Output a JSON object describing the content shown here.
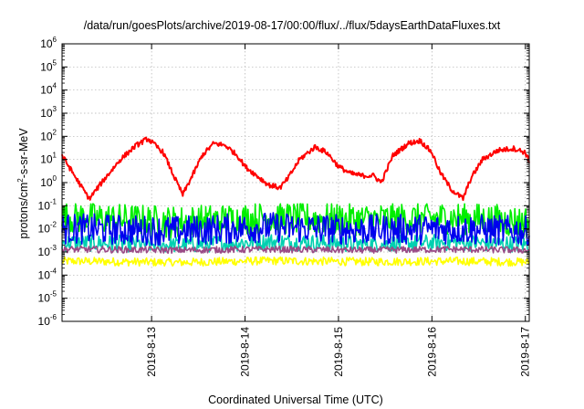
{
  "chart_data": {
    "type": "line",
    "title": "/data/run/goesPlots/archive/2019-08-17/00:00/flux/../flux/5daysEarthDataFluxes.txt",
    "xlabel": "Coordinated Universal Time (UTC)",
    "ylabel": {
      "pre": "protons/cm",
      "sup": "2",
      "post": "-s-sr-MeV"
    },
    "yscale": "log",
    "ylim": [
      1e-06,
      1000000.0
    ],
    "xlim": [
      "2019-08-12 01:00",
      "2019-08-17 01:00"
    ],
    "grid": true,
    "legend": "none",
    "y_tick_labels": [
      {
        "base": "10",
        "exp": "-6",
        "value": 1e-06
      },
      {
        "base": "10",
        "exp": "-5",
        "value": 1e-05
      },
      {
        "base": "10",
        "exp": "-4",
        "value": 0.0001
      },
      {
        "base": "10",
        "exp": "-3",
        "value": 0.001
      },
      {
        "base": "10",
        "exp": "-2",
        "value": 0.01
      },
      {
        "base": "10",
        "exp": "-1",
        "value": 0.1
      },
      {
        "base": "10",
        "exp": "0",
        "value": 1
      },
      {
        "base": "10",
        "exp": "1",
        "value": 10
      },
      {
        "base": "10",
        "exp": "2",
        "value": 100
      },
      {
        "base": "10",
        "exp": "3",
        "value": 1000
      },
      {
        "base": "10",
        "exp": "4",
        "value": 10000
      },
      {
        "base": "10",
        "exp": "5",
        "value": 100000
      },
      {
        "base": "10",
        "exp": "6",
        "value": 1000000
      }
    ],
    "x_tick_labels": [
      {
        "label": "2019-8-13",
        "value": "2019-08-13 00:00"
      },
      {
        "label": "2019-8-14",
        "value": "2019-08-14 00:00"
      },
      {
        "label": "2019-8-15",
        "value": "2019-08-15 00:00"
      },
      {
        "label": "2019-8-16",
        "value": "2019-08-16 00:00"
      },
      {
        "label": "2019-8-17",
        "value": "2019-08-17 00:00"
      }
    ],
    "series": [
      {
        "color": "#ffff00",
        "style": "noisy band",
        "range": [
          0.00025,
          0.0006
        ],
        "x": [
          "2019-08-12 06:00",
          "2019-08-13 06:00",
          "2019-08-14 06:00",
          "2019-08-15 06:00",
          "2019-08-16 06:00",
          "2019-08-17 00:00"
        ],
        "values": [
          0.0004,
          0.00035,
          0.00042,
          0.00038,
          0.0004,
          0.00037
        ]
      },
      {
        "color": "#00d0b0",
        "style": "noisy band",
        "range": [
          0.001,
          0.006
        ],
        "x": [
          "2019-08-12 06:00",
          "2019-08-13 06:00",
          "2019-08-14 06:00",
          "2019-08-15 06:00",
          "2019-08-16 06:00",
          "2019-08-17 00:00"
        ],
        "values": [
          0.0025,
          0.002,
          0.0028,
          0.0022,
          0.0026,
          0.0021
        ]
      },
      {
        "color": "#00ee00",
        "style": "noisy band",
        "range": [
          0.004,
          0.12
        ],
        "x": [
          "2019-08-12 06:00",
          "2019-08-13 06:00",
          "2019-08-14 06:00",
          "2019-08-15 06:00",
          "2019-08-16 06:00",
          "2019-08-17 00:00"
        ],
        "values": [
          0.03,
          0.02,
          0.03,
          0.025,
          0.03,
          0.02
        ]
      },
      {
        "color": "#0000ee",
        "style": "noisy band",
        "range": [
          0.002,
          0.05
        ],
        "x": [
          "2019-08-12 06:00",
          "2019-08-13 06:00",
          "2019-08-14 06:00",
          "2019-08-15 06:00",
          "2019-08-16 06:00",
          "2019-08-17 00:00"
        ],
        "values": [
          0.01,
          0.008,
          0.012,
          0.009,
          0.01,
          0.008
        ]
      },
      {
        "color": "#9a4a86",
        "style": "noisy band",
        "range": [
          0.0009,
          0.0018
        ],
        "x": [
          "2019-08-12 06:00",
          "2019-08-13 06:00",
          "2019-08-14 06:00",
          "2019-08-15 06:00",
          "2019-08-16 06:00",
          "2019-08-17 00:00"
        ],
        "values": [
          0.0013,
          0.0012,
          0.0013,
          0.0012,
          0.0013,
          0.0012
        ]
      },
      {
        "color": "#ff0000",
        "style": "line",
        "x": [
          "2019-08-12 01:00",
          "2019-08-12 05:00",
          "2019-08-12 08:00",
          "2019-08-12 12:00",
          "2019-08-12 16:00",
          "2019-08-12 20:00",
          "2019-08-12 23:00",
          "2019-08-13 03:00",
          "2019-08-13 06:00",
          "2019-08-13 08:00",
          "2019-08-13 11:00",
          "2019-08-13 13:00",
          "2019-08-13 16:00",
          "2019-08-13 19:00",
          "2019-08-13 22:00",
          "2019-08-14 00:00",
          "2019-08-14 03:00",
          "2019-08-14 06:00",
          "2019-08-14 09:00",
          "2019-08-14 11:00",
          "2019-08-14 14:00",
          "2019-08-14 18:00",
          "2019-08-14 21:00",
          "2019-08-15 00:00",
          "2019-08-15 03:00",
          "2019-08-15 06:00",
          "2019-08-15 09:00",
          "2019-08-15 11:00",
          "2019-08-15 14:00",
          "2019-08-15 18:00",
          "2019-08-15 21:00",
          "2019-08-16 00:00",
          "2019-08-16 02:00",
          "2019-08-16 05:00",
          "2019-08-16 08:00",
          "2019-08-16 10:00",
          "2019-08-16 13:00",
          "2019-08-16 17:00",
          "2019-08-16 21:00",
          "2019-08-17 00:00",
          "2019-08-17 01:00"
        ],
        "values": [
          15,
          1.2,
          0.2,
          1.5,
          10,
          40,
          80,
          20,
          1.5,
          0.3,
          3,
          15,
          50,
          40,
          15,
          5,
          2,
          0.8,
          0.6,
          1.5,
          10,
          35,
          20,
          5,
          2.5,
          2,
          2,
          1.0,
          15,
          50,
          65,
          20,
          3,
          0.5,
          0.2,
          1.5,
          10,
          25,
          30,
          20,
          8
        ]
      }
    ]
  }
}
